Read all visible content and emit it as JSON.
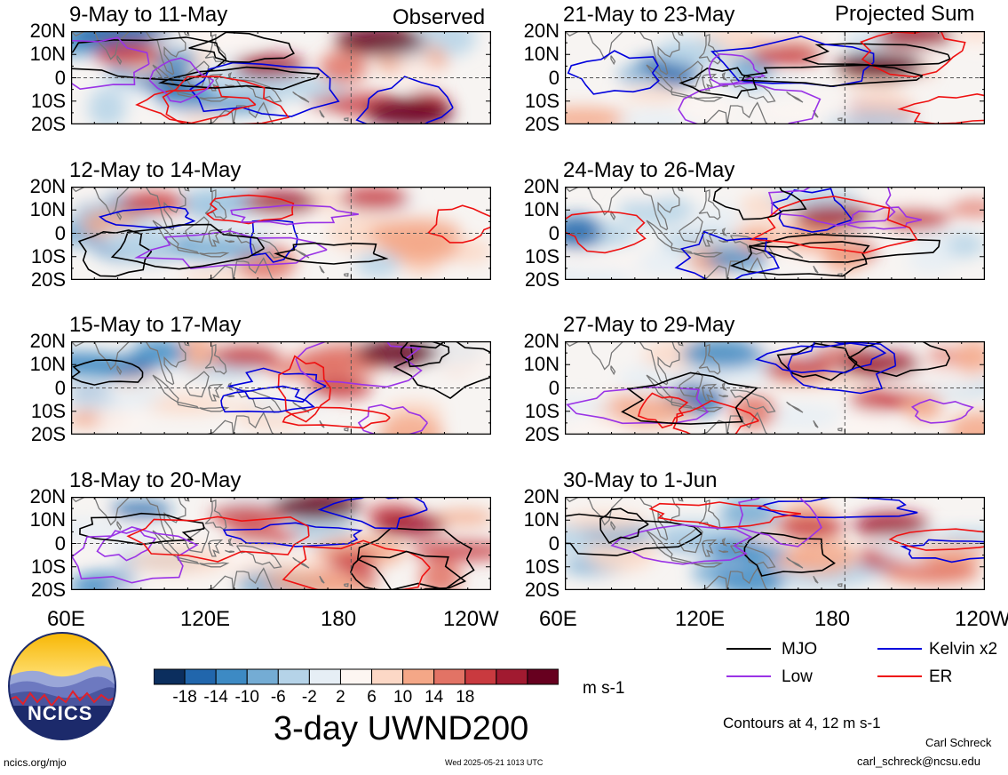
{
  "figure": {
    "title": "3-day UWND200",
    "website": "ncics.org/mjo",
    "timestamp": "Wed 2025-05-21 1013 UTC",
    "author": "Carl Schreck",
    "email": "carl_schreck@ncsu.edu",
    "contour_note": "Contours at 4, 12 m s-1",
    "logo_text": "NCICS"
  },
  "column_headers": {
    "left": "Observed",
    "right": "Projected Sum"
  },
  "lat_labels": [
    "20N",
    "10N",
    "0",
    "10S",
    "20S"
  ],
  "lon_labels": [
    "60E",
    "120E",
    "180",
    "120W"
  ],
  "colorbar": {
    "tick_labels": [
      "-18",
      "-14",
      "-10",
      "-6",
      "-2",
      "2",
      "6",
      "10",
      "14",
      "18"
    ],
    "unit": "m s-1",
    "colors": [
      "#0b2e5e",
      "#2166ac",
      "#3d8ac4",
      "#74acd4",
      "#b5d3e8",
      "#e6eef5",
      "#fdf6f2",
      "#fcd8c6",
      "#f4a787",
      "#e27365",
      "#c93a3f",
      "#a11a30",
      "#67001f"
    ]
  },
  "legend": {
    "items": [
      {
        "label": "MJO",
        "color": "#000000"
      },
      {
        "label": "Kelvin x2",
        "color": "#0000dd"
      },
      {
        "label": "Low",
        "color": "#9a33e6"
      },
      {
        "label": "ER",
        "color": "#ee1111"
      }
    ]
  },
  "chart_data": {
    "type": "heatmap",
    "variable": "3-day UWND200",
    "units": "m s-1",
    "xlim": [
      "60E",
      "120W"
    ],
    "ylim": [
      "20S",
      "20N"
    ],
    "contour_levels": [
      4,
      12
    ],
    "panels": [
      {
        "label": "9-May to 11-May",
        "column": "Observed",
        "core": [
          [
            192,
            16,
            1.0
          ],
          [
            205,
            -15,
            1.0
          ],
          [
            145,
            5,
            0.55
          ],
          [
            85,
            10,
            0.45
          ]
        ]
      },
      {
        "label": "12-May to 14-May",
        "column": "Observed",
        "core": [
          [
            150,
            13,
            0.6
          ],
          [
            190,
            15,
            0.45
          ],
          [
            95,
            13,
            0.4
          ]
        ]
      },
      {
        "label": "15-May to 17-May",
        "column": "Observed",
        "core": [
          [
            200,
            15,
            0.85
          ],
          [
            135,
            14,
            0.5
          ],
          [
            175,
            0,
            0.35
          ]
        ]
      },
      {
        "label": "18-May to 20-May",
        "column": "Observed",
        "core": [
          [
            165,
            16,
            1.0
          ],
          [
            205,
            8,
            0.55
          ],
          [
            135,
            12,
            0.5
          ]
        ]
      },
      {
        "label": "21-May to 23-May",
        "column": "Projected Sum",
        "core": [
          [
            195,
            5,
            1.0
          ],
          [
            210,
            18,
            0.7
          ],
          [
            155,
            10,
            0.5
          ]
        ]
      },
      {
        "label": "24-May to 26-May",
        "column": "Projected Sum",
        "core": [
          [
            175,
            7,
            0.75
          ],
          [
            210,
            6,
            0.45
          ]
        ]
      },
      {
        "label": "27-May to 29-May",
        "column": "Projected Sum",
        "core": [
          [
            195,
            10,
            0.8
          ],
          [
            160,
            8,
            0.45
          ]
        ]
      },
      {
        "label": "30-May to 1-Jun",
        "column": "Projected Sum",
        "core": [
          [
            200,
            8,
            0.65
          ],
          [
            165,
            7,
            0.45
          ]
        ]
      }
    ]
  }
}
